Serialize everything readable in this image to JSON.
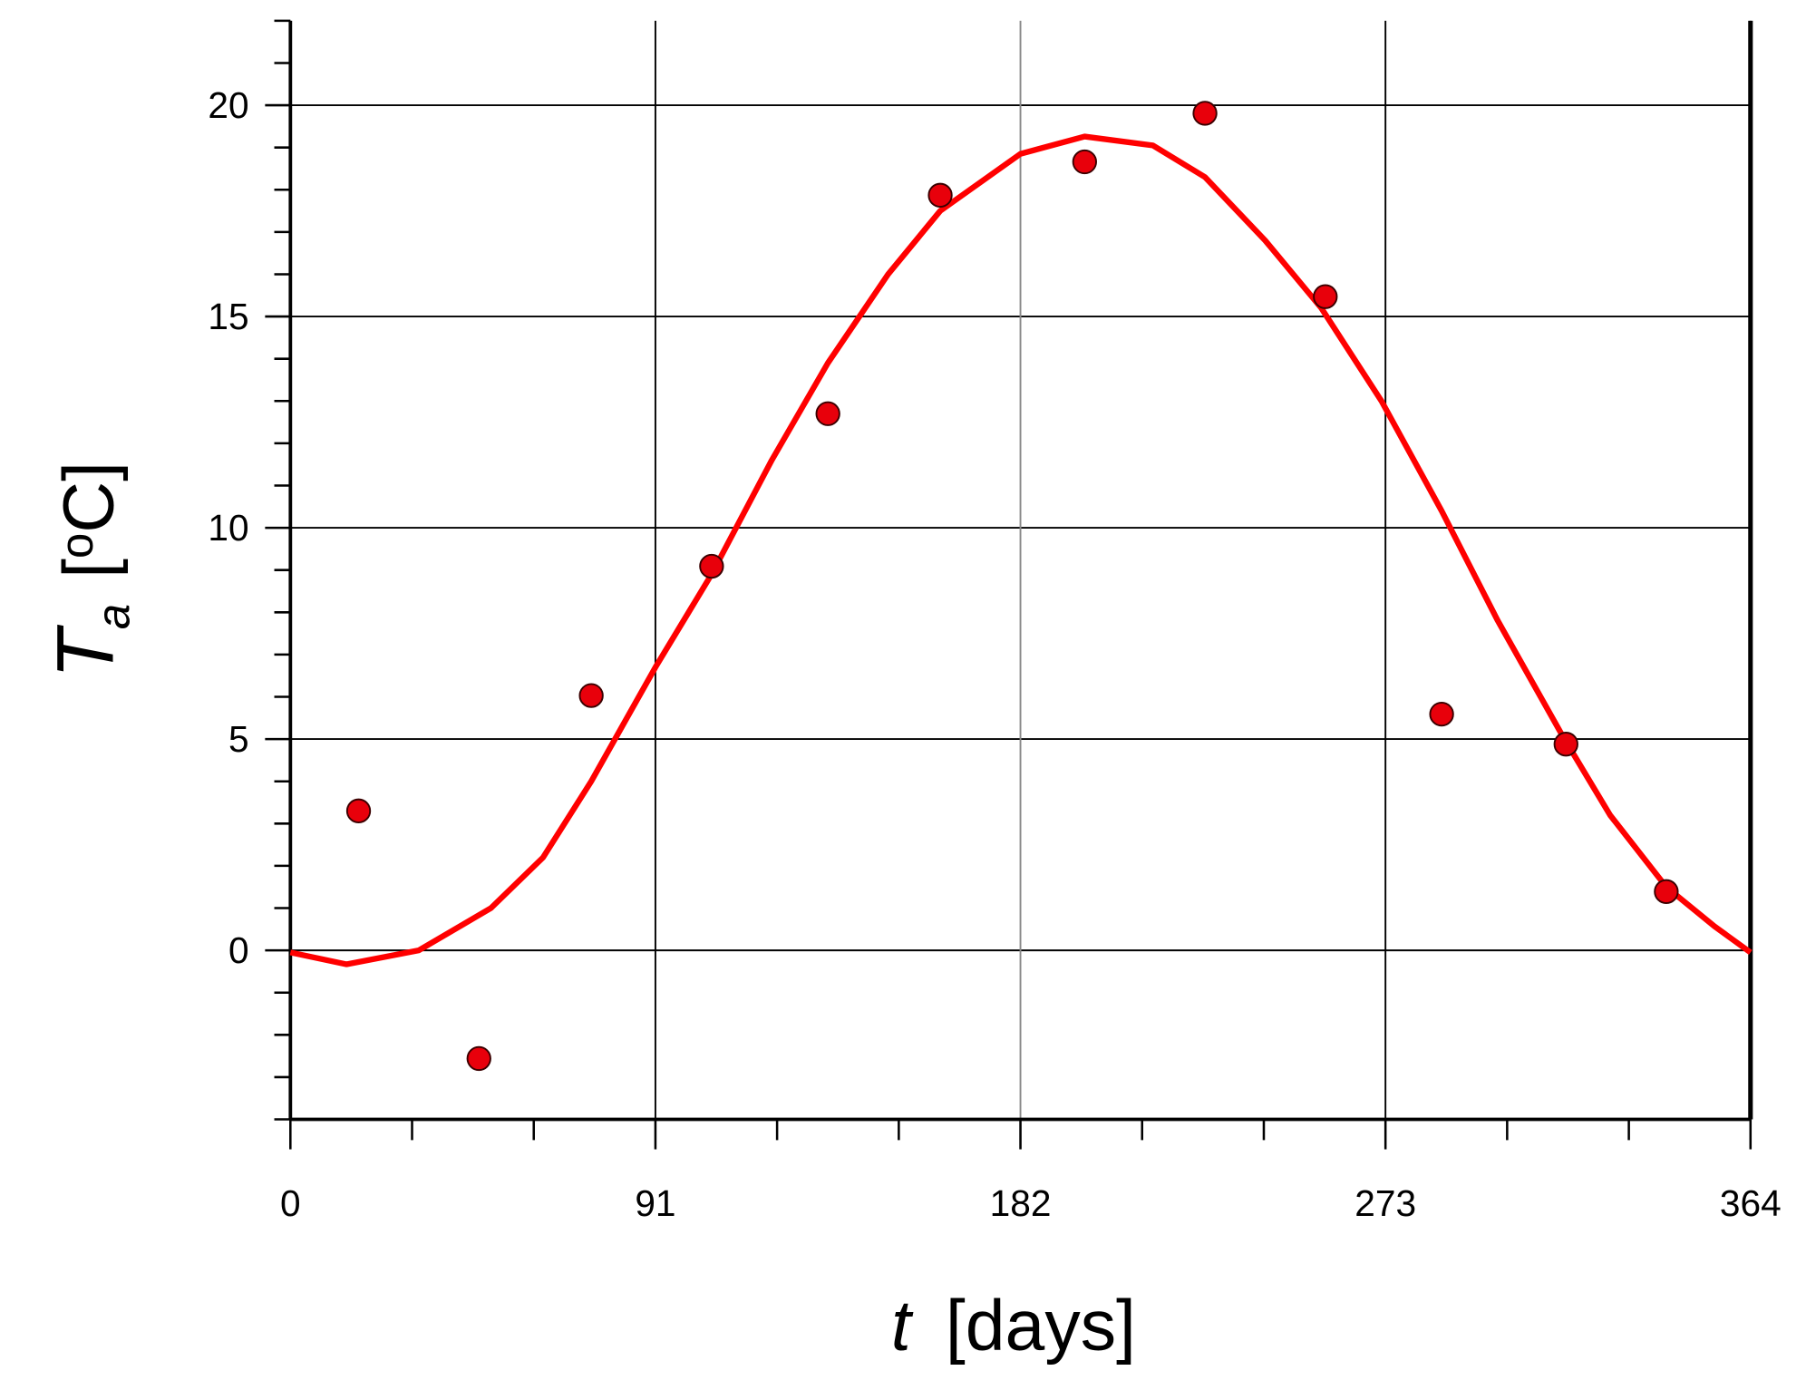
{
  "chart_data": {
    "type": "scatter",
    "x_label": {
      "symbol": "t",
      "unit": "[days]"
    },
    "y_label": {
      "symbol": "T",
      "subscript": "a",
      "unit_open": "[",
      "unit_superscript": "o",
      "unit_rest": "C]"
    },
    "xlim": [
      0,
      364
    ],
    "xticks": [
      0,
      91,
      182,
      273,
      364
    ],
    "xminorticks": [
      30.33,
      60.67,
      121.33,
      151.67,
      212.33,
      242.67,
      303.33,
      333.67
    ],
    "ylim": [
      -4,
      22
    ],
    "yticks": [
      0,
      5,
      10,
      15,
      20
    ],
    "yminorticks": [
      -4,
      -3,
      -2,
      -1,
      1,
      2,
      3,
      4,
      6,
      7,
      8,
      9,
      11,
      12,
      13,
      14,
      16,
      17,
      18,
      19,
      21,
      22
    ],
    "grid": true,
    "series": [
      {
        "kind": "line",
        "color": "#ff0000",
        "x": [
          0,
          14,
          32,
          50,
          63,
          75,
          91,
          105,
          120,
          134,
          149,
          162,
          182,
          198,
          215,
          228,
          243,
          257,
          272,
          287,
          301,
          317,
          329,
          343,
          355,
          364
        ],
        "values": [
          -0.05,
          -0.33,
          0,
          1.0,
          2.2,
          4.0,
          6.7,
          8.9,
          11.6,
          13.9,
          16.0,
          17.5,
          18.85,
          19.26,
          19.05,
          18.3,
          16.8,
          15.2,
          13.0,
          10.4,
          7.8,
          5.1,
          3.2,
          1.5,
          0.57,
          -0.05
        ]
      },
      {
        "kind": "points",
        "color": "#e8000b",
        "x": [
          17,
          47,
          75,
          105,
          134,
          162,
          198,
          228,
          258,
          287,
          318,
          343
        ],
        "values": [
          3.3,
          -2.56,
          6.03,
          9.09,
          12.7,
          17.87,
          18.66,
          19.81,
          15.47,
          5.59,
          4.88,
          1.39
        ]
      }
    ]
  }
}
